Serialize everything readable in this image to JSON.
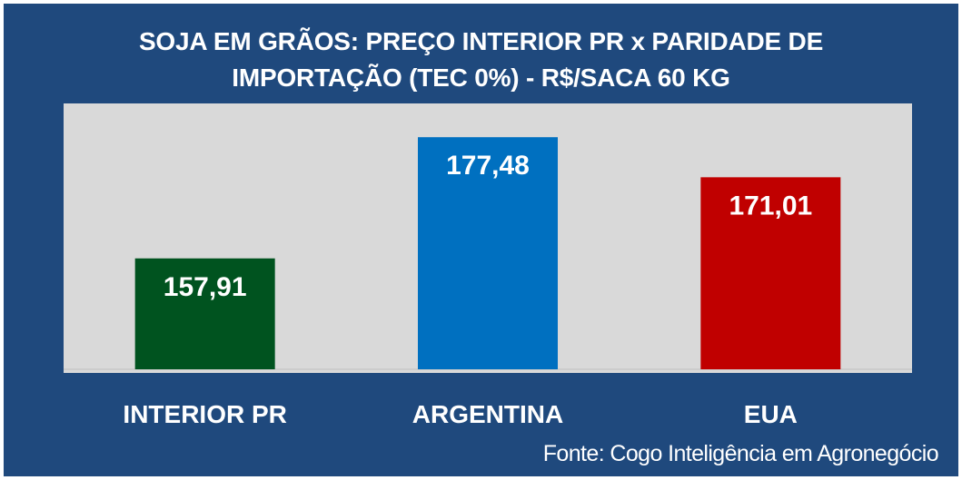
{
  "chart_data": {
    "type": "bar",
    "title_line1": "SOJA EM GRÃOS: PREÇO INTERIOR PR x PARIDADE DE",
    "title_line2": "IMPORTAÇÃO (TEC 0%) - R$/SACA 60 KG",
    "categories": [
      "INTERIOR PR",
      "ARGENTINA",
      "EUA"
    ],
    "values": [
      157.91,
      177.48,
      171.01
    ],
    "value_labels": [
      "157,91",
      "177,48",
      "171,01"
    ],
    "colors": [
      "#00531f",
      "#0070c0",
      "#c00000"
    ],
    "ylim": [
      140,
      180
    ],
    "grid": false,
    "plot_background": "#d9d9d9",
    "xlabel": "",
    "ylabel": ""
  },
  "source": "Fonte: Cogo Inteligência em Agronegócio"
}
